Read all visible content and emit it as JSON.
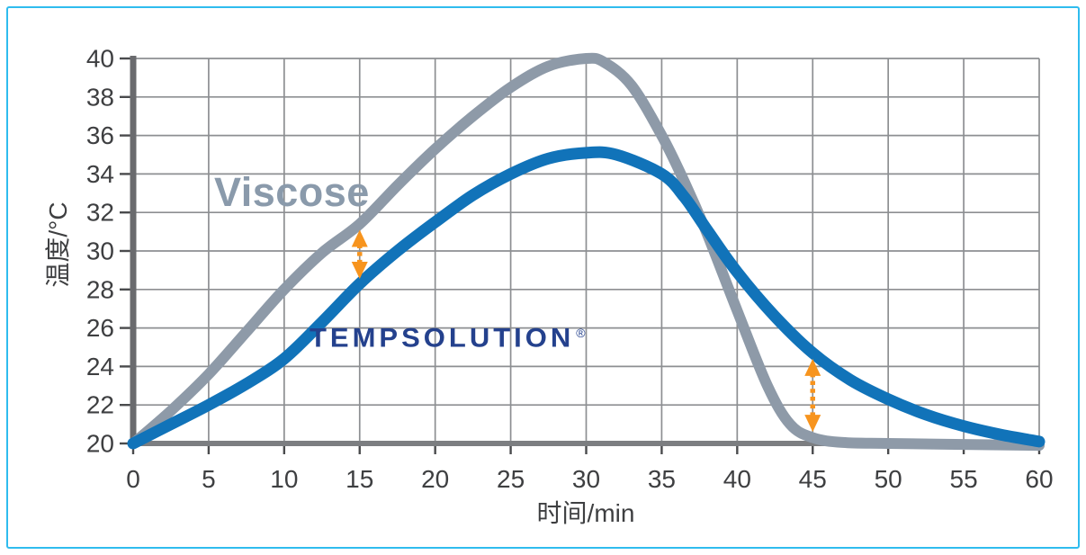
{
  "page": {
    "background": "#ffffff",
    "frame_color": "#2FBCEE"
  },
  "chart_data": {
    "type": "line",
    "title": "",
    "xlabel": "时间/min",
    "ylabel": "温度/°C",
    "xlim": [
      0,
      60
    ],
    "ylim": [
      20,
      40
    ],
    "x_ticks": [
      0,
      5,
      10,
      15,
      20,
      25,
      30,
      35,
      40,
      45,
      50,
      55,
      60
    ],
    "y_ticks": [
      20,
      22,
      24,
      26,
      28,
      30,
      32,
      34,
      36,
      38,
      40
    ],
    "grid": true,
    "grid_color": "#8D8F92",
    "axis_color_y": "#6A6B6E",
    "axis_color_x": "#7C7E81",
    "tick_text_color": "#3E3F41",
    "series": [
      {
        "name": "Viscose",
        "color": "#8E9AA8",
        "stroke_width": 12,
        "points": [
          [
            0,
            20
          ],
          [
            2.5,
            21.7
          ],
          [
            5,
            23.6
          ],
          [
            7.5,
            25.8
          ],
          [
            10,
            28.0
          ],
          [
            12.5,
            29.9
          ],
          [
            15,
            31.4
          ],
          [
            17.5,
            33.4
          ],
          [
            20,
            35.3
          ],
          [
            22.5,
            37.0
          ],
          [
            25,
            38.5
          ],
          [
            27.5,
            39.6
          ],
          [
            30,
            40.0
          ],
          [
            31.2,
            39.8
          ],
          [
            33,
            38.6
          ],
          [
            35,
            36.0
          ],
          [
            36.5,
            33.6
          ],
          [
            38,
            30.9
          ],
          [
            40,
            26.9
          ],
          [
            42,
            23.0
          ],
          [
            43.5,
            21.0
          ],
          [
            45,
            20.3
          ],
          [
            47,
            20.05
          ],
          [
            50,
            20.0
          ],
          [
            55,
            19.95
          ],
          [
            60,
            19.9
          ]
        ]
      },
      {
        "name": "TEMPSOLUTION",
        "color": "#1173B9",
        "stroke_width": 13,
        "points": [
          [
            0,
            20
          ],
          [
            2.5,
            21.0
          ],
          [
            5,
            22.0
          ],
          [
            7.5,
            23.1
          ],
          [
            10,
            24.4
          ],
          [
            12.5,
            26.3
          ],
          [
            15,
            28.3
          ],
          [
            17.5,
            30.0
          ],
          [
            20,
            31.5
          ],
          [
            22.5,
            32.9
          ],
          [
            25,
            34.0
          ],
          [
            27.5,
            34.8
          ],
          [
            30,
            35.1
          ],
          [
            32,
            35.0
          ],
          [
            35,
            34.0
          ],
          [
            36.5,
            32.8
          ],
          [
            38,
            31.1
          ],
          [
            40,
            28.9
          ],
          [
            42.5,
            26.6
          ],
          [
            45,
            24.7
          ],
          [
            47.5,
            23.3
          ],
          [
            50,
            22.3
          ],
          [
            52.5,
            21.5
          ],
          [
            55,
            20.9
          ],
          [
            57.5,
            20.45
          ],
          [
            60,
            20.1
          ]
        ]
      }
    ],
    "annotations": {
      "series_label": {
        "text": "Viscose",
        "color": "#8A9AAB"
      },
      "brand": {
        "text": "TEMPSOLUTION",
        "registered": "®",
        "color": "#24418D"
      },
      "arrows": [
        {
          "t": 15,
          "v_from": 31.1,
          "v_to": 28.55,
          "color": "#F7941E"
        },
        {
          "t": 45,
          "v_from": 24.4,
          "v_to": 20.6,
          "color": "#F7941E"
        }
      ]
    },
    "legend": "none"
  }
}
